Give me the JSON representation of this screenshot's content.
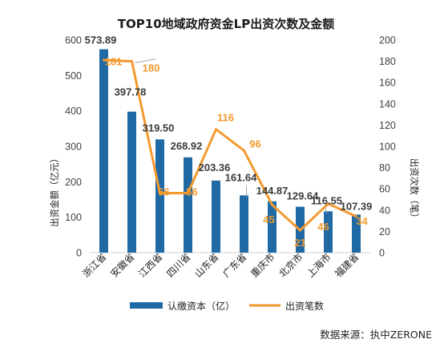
{
  "chart_data": {
    "type": "bar+line",
    "title": "TOP10地域政府资金LP出资次数及金额",
    "categories": [
      "浙江省",
      "安徽省",
      "江西省",
      "四川省",
      "山东省",
      "广东省",
      "重庆市",
      "北京市",
      "上海市",
      "福建省"
    ],
    "series": [
      {
        "name": "认缴资本（亿）",
        "type": "bar",
        "axis": "left",
        "color": "#1f6aa5",
        "values": [
          573.89,
          397.78,
          319.5,
          268.92,
          203.36,
          161.64,
          144.87,
          129.64,
          116.55,
          107.39
        ],
        "labels": [
          "573.89",
          "397.78",
          "319.50",
          "268.92",
          "203.36",
          "161.64",
          "144.87",
          "129.64",
          "116.55",
          "107.39"
        ]
      },
      {
        "name": "出资笔数",
        "type": "line",
        "axis": "right",
        "color": "#f39a2f",
        "values": [
          181,
          180,
          56,
          56,
          116,
          96,
          45,
          21,
          46,
          34
        ],
        "labels": [
          "181",
          "180",
          "56",
          "56",
          "116",
          "96",
          "45",
          "21",
          "46",
          "34"
        ]
      }
    ],
    "ylabel_left": "出资金额（亿元）",
    "ylabel_right": "出资次数（笔）",
    "ylim_left": [
      0,
      600
    ],
    "yticks_left": [
      "0",
      "100",
      "200",
      "300",
      "400",
      "500",
      "600"
    ],
    "ylim_right": [
      0,
      200
    ],
    "yticks_right": [
      "0",
      "20",
      "40",
      "60",
      "80",
      "100",
      "120",
      "140",
      "160",
      "180",
      "200"
    ],
    "grid": false,
    "legend_position": "bottom"
  },
  "source_text": "数据来源：执中ZERONE"
}
